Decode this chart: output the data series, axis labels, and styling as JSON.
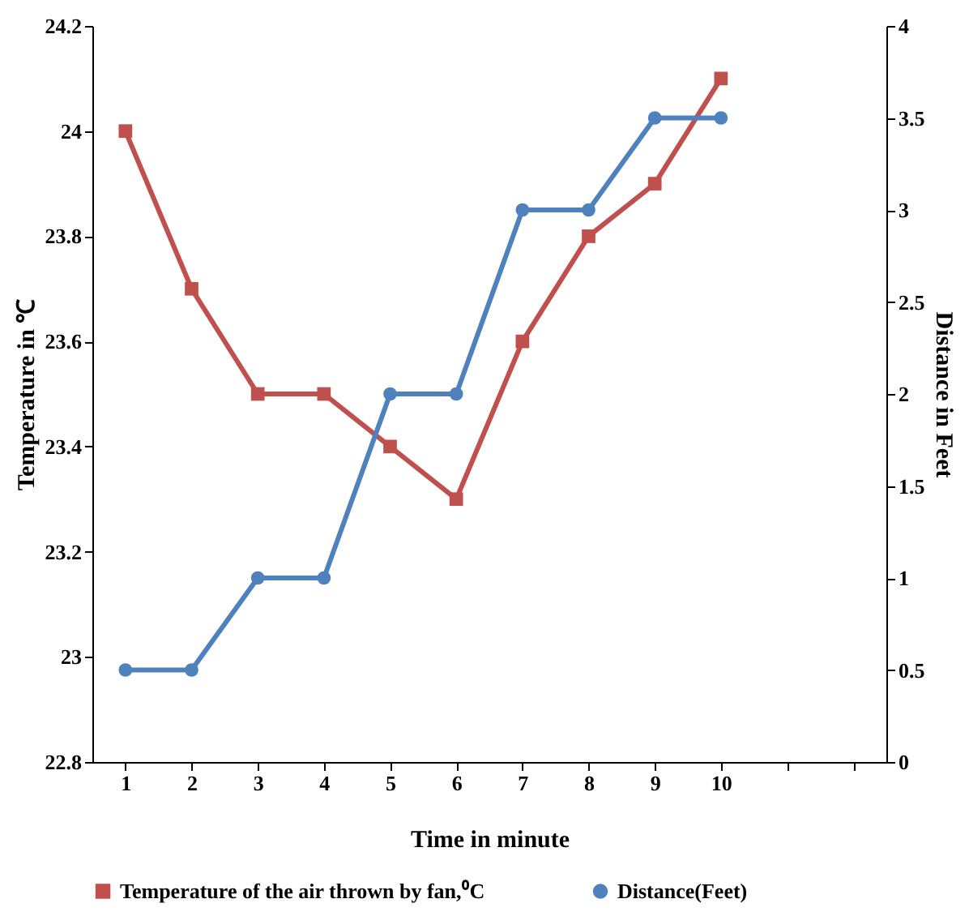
{
  "chart_data": {
    "type": "line",
    "xlabel": "Time in minute",
    "ylabel": "Temperature in ℃",
    "y2label": "Distance in Feet",
    "categories": [
      "1",
      "2",
      "3",
      "4",
      "5",
      "6",
      "7",
      "8",
      "9",
      "10",
      null,
      null
    ],
    "series": [
      {
        "name": "Temperature of the air  thrown by fan,⁰C",
        "color": "#c0504d",
        "marker": "square",
        "values": [
          24,
          23.7,
          23.5,
          23.5,
          23.4,
          23.3,
          23.6,
          23.8,
          23.9,
          24.1,
          null,
          null
        ]
      },
      {
        "name": "Distance(Feet)",
        "color": "#4f81bd",
        "marker": "circle",
        "axis": "y2",
        "values": [
          0.5,
          0.5,
          1,
          1,
          2,
          2,
          3,
          3,
          3.5,
          3.5,
          null,
          null
        ]
      }
    ],
    "ylim": [
      22.8,
      24.2
    ],
    "yticks": [
      22.8,
      23,
      23.2,
      23.4,
      23.6,
      23.8,
      24,
      24.2
    ],
    "y2lim": [
      0,
      4
    ],
    "y2ticks": [
      0,
      0.5,
      1,
      1.5,
      2,
      2.5,
      3,
      3.5,
      4
    ],
    "legend": "bottom"
  }
}
